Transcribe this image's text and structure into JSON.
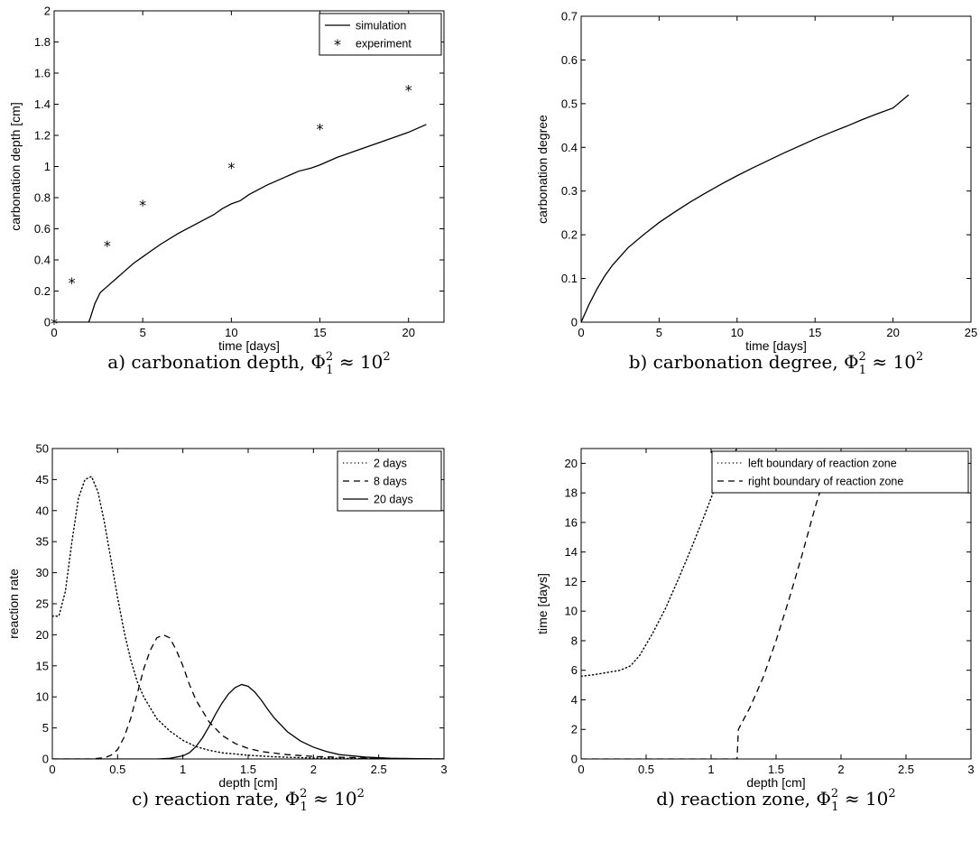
{
  "chart_data": [
    {
      "type": "line",
      "title": "",
      "caption": {
        "prefix": "a) carbonation depth, ",
        "symbol": "Φ",
        "sub": "1",
        "sup": "2",
        "rel": " ≈ 10",
        "exp": "2"
      },
      "xlabel": "time [days]",
      "ylabel": "carbonation depth [cm]",
      "xlim": [
        0,
        22
      ],
      "ylim": [
        0,
        2
      ],
      "xticks": [
        0,
        5,
        10,
        15,
        20
      ],
      "yticks": [
        0,
        0.2,
        0.4,
        0.6,
        0.8,
        1,
        1.2,
        1.4,
        1.6,
        1.8,
        2
      ],
      "legend_position": "top-right",
      "series": [
        {
          "name": "simulation",
          "style": "solid",
          "x": [
            0,
            1.0,
            1.95,
            2.05,
            2.3,
            2.6,
            3.0,
            3.5,
            4.0,
            4.5,
            5.0,
            5.5,
            6.0,
            7.0,
            8.0,
            9.0,
            9.5,
            10.0,
            10.5,
            11.0,
            12.0,
            13.0,
            13.4,
            13.8,
            14.5,
            15.0,
            16.0,
            17.0,
            18.0,
            19.0,
            20.0,
            21.0
          ],
          "y": [
            0,
            0,
            0,
            0.03,
            0.12,
            0.19,
            0.23,
            0.28,
            0.33,
            0.38,
            0.42,
            0.46,
            0.5,
            0.57,
            0.63,
            0.69,
            0.73,
            0.76,
            0.78,
            0.82,
            0.88,
            0.93,
            0.95,
            0.97,
            0.99,
            1.01,
            1.06,
            1.1,
            1.14,
            1.18,
            1.22,
            1.27
          ]
        },
        {
          "name": "experiment",
          "style": "marker",
          "x": [
            0,
            1,
            3,
            5,
            10,
            15,
            20
          ],
          "y": [
            0,
            0.26,
            0.5,
            0.76,
            1.0,
            1.25,
            1.5
          ]
        }
      ]
    },
    {
      "type": "line",
      "title": "",
      "caption": {
        "prefix": "b) carbonation degree, ",
        "symbol": "Φ",
        "sub": "1",
        "sup": "2",
        "rel": " ≈ 10",
        "exp": "2"
      },
      "xlabel": "time [days]",
      "ylabel": "carbonation degree",
      "xlim": [
        0,
        25
      ],
      "ylim": [
        0,
        0.7
      ],
      "xticks": [
        0,
        5,
        10,
        15,
        20,
        25
      ],
      "yticks": [
        0,
        0.1,
        0.2,
        0.3,
        0.4,
        0.5,
        0.6,
        0.7
      ],
      "legend_position": "none",
      "series": [
        {
          "name": "",
          "style": "solid",
          "x": [
            0,
            0.5,
            1,
            1.5,
            2,
            3,
            4,
            5,
            6,
            7,
            8,
            9,
            10,
            11,
            12,
            13,
            14,
            15,
            16,
            17,
            18,
            19,
            20,
            21
          ],
          "y": [
            0,
            0.04,
            0.075,
            0.105,
            0.13,
            0.17,
            0.2,
            0.228,
            0.252,
            0.275,
            0.296,
            0.316,
            0.335,
            0.353,
            0.37,
            0.387,
            0.403,
            0.419,
            0.434,
            0.448,
            0.463,
            0.477,
            0.49,
            0.52
          ]
        }
      ]
    },
    {
      "type": "line",
      "title": "",
      "caption": {
        "prefix": "c) reaction rate, ",
        "symbol": "Φ",
        "sub": "1",
        "sup": "2",
        "rel": " ≈ 10",
        "exp": "2"
      },
      "xlabel": "depth [cm]",
      "ylabel": "reaction rate",
      "xlim": [
        0,
        3
      ],
      "ylim": [
        0,
        50
      ],
      "xticks": [
        0,
        0.5,
        1,
        1.5,
        2,
        2.5,
        3
      ],
      "yticks": [
        0,
        5,
        10,
        15,
        20,
        25,
        30,
        35,
        40,
        45,
        50
      ],
      "legend_position": "top-right",
      "series": [
        {
          "name": "2 days",
          "style": "dotted",
          "x": [
            0,
            0.05,
            0.1,
            0.15,
            0.2,
            0.25,
            0.3,
            0.35,
            0.4,
            0.45,
            0.5,
            0.55,
            0.6,
            0.65,
            0.7,
            0.8,
            0.9,
            1.0,
            1.1,
            1.2,
            1.3,
            1.5,
            1.7,
            2.0,
            2.5,
            3.0
          ],
          "y": [
            23,
            23,
            27,
            35,
            42,
            45,
            45.5,
            43,
            38,
            32,
            26,
            20.5,
            16,
            12.5,
            10,
            6.5,
            4.5,
            3.0,
            2.0,
            1.4,
            1.0,
            0.6,
            0.35,
            0.15,
            0.05,
            0
          ]
        },
        {
          "name": "8 days",
          "style": "dashed",
          "x": [
            0,
            0.3,
            0.4,
            0.45,
            0.5,
            0.55,
            0.6,
            0.65,
            0.7,
            0.75,
            0.8,
            0.85,
            0.9,
            0.95,
            1.0,
            1.05,
            1.1,
            1.2,
            1.3,
            1.4,
            1.5,
            1.6,
            1.8,
            2.0,
            2.5,
            3.0
          ],
          "y": [
            0,
            0,
            0.2,
            0.6,
            1.5,
            3.5,
            6.5,
            10.5,
            14.5,
            17.5,
            19.5,
            20.0,
            19.5,
            17.5,
            15,
            12,
            9.5,
            6,
            3.8,
            2.5,
            1.7,
            1.2,
            0.7,
            0.4,
            0.1,
            0
          ]
        },
        {
          "name": "20 days",
          "style": "solid",
          "x": [
            0,
            0.8,
            0.9,
            1.0,
            1.05,
            1.1,
            1.15,
            1.2,
            1.25,
            1.3,
            1.35,
            1.4,
            1.45,
            1.5,
            1.55,
            1.6,
            1.65,
            1.7,
            1.8,
            1.9,
            2.0,
            2.1,
            2.2,
            2.4,
            2.6,
            3.0
          ],
          "y": [
            0,
            0,
            0.1,
            0.5,
            1.0,
            2.0,
            3.4,
            5.2,
            7.2,
            9.0,
            10.5,
            11.5,
            12.0,
            11.7,
            10.8,
            9.5,
            8.0,
            6.6,
            4.4,
            2.9,
            1.9,
            1.2,
            0.7,
            0.3,
            0.1,
            0
          ]
        }
      ]
    },
    {
      "type": "line",
      "title": "",
      "caption": {
        "prefix": "d) reaction zone, ",
        "symbol": "Φ",
        "sub": "1",
        "sup": "2",
        "rel": " ≈ 10",
        "exp": "2"
      },
      "xlabel": "depth [cm]",
      "ylabel": "time [days]",
      "xlim": [
        0,
        3
      ],
      "ylim": [
        0,
        21
      ],
      "xticks": [
        0,
        0.5,
        1,
        1.5,
        2,
        2.5,
        3
      ],
      "yticks": [
        0,
        2,
        4,
        6,
        8,
        10,
        12,
        14,
        16,
        18,
        20
      ],
      "legend_position": "top-right",
      "series": [
        {
          "name": "left boundary of reaction zone",
          "style": "dotted",
          "x": [
            0,
            0.1,
            0.2,
            0.3,
            0.38,
            0.45,
            0.55,
            0.65,
            0.75,
            0.85,
            0.95,
            1.05,
            1.12,
            1.2
          ],
          "y": [
            5.6,
            5.7,
            5.85,
            6.0,
            6.3,
            7.0,
            8.5,
            10.2,
            12.2,
            14.3,
            16.5,
            18.8,
            20.0,
            21.0
          ]
        },
        {
          "name": "right boundary of reaction zone",
          "style": "dashed",
          "x": [
            0,
            1.19,
            1.2,
            1.21,
            1.3,
            1.4,
            1.5,
            1.6,
            1.7,
            1.8,
            1.87
          ],
          "y": [
            0,
            0,
            0,
            2.0,
            3.5,
            5.5,
            8.0,
            10.8,
            13.8,
            17.0,
            19.0
          ]
        }
      ]
    }
  ]
}
